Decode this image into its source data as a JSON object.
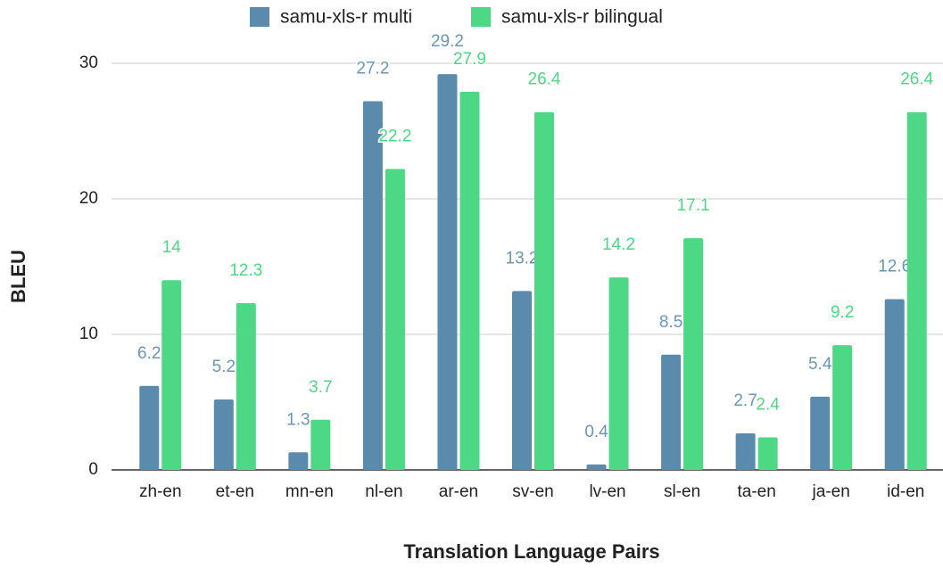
{
  "chart_data": {
    "type": "bar",
    "x_label": "Translation Language Pairs",
    "y_label": "BLEU",
    "categories": [
      "zh-en",
      "et-en",
      "mn-en",
      "nl-en",
      "ar-en",
      "sv-en",
      "lv-en",
      "sl-en",
      "ta-en",
      "ja-en",
      "id-en"
    ],
    "series": [
      {
        "name": "samu-xls-r multi",
        "color": "#5a8bad",
        "values": [
          6.2,
          5.2,
          1.3,
          27.2,
          29.2,
          13.2,
          0.4,
          8.5,
          2.7,
          5.4,
          12.6
        ]
      },
      {
        "name": "samu-xls-r bilingual",
        "color": "#4cd884",
        "values": [
          14,
          12.3,
          3.7,
          22.2,
          27.9,
          26.4,
          14.2,
          17.1,
          2.4,
          9.2,
          26.4
        ]
      }
    ],
    "ylim": [
      0,
      30
    ],
    "yticks": [
      0,
      10,
      20,
      30
    ],
    "grid": true,
    "legend": "top"
  }
}
